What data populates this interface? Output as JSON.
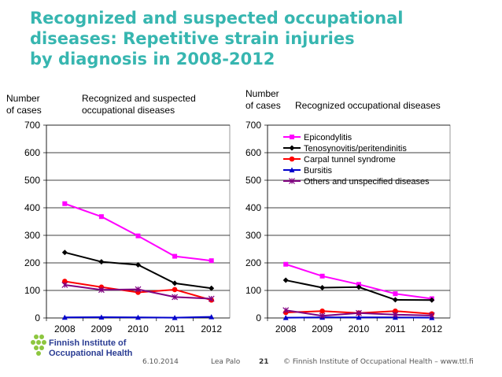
{
  "title_lines": [
    "Recognized and suspected occupational",
    "diseases: Repetitive strain injuries",
    "by diagnosis in 2008-2012"
  ],
  "left_ylabel": [
    "Number",
    "of cases"
  ],
  "left_subtitle": [
    "Recognized and suspected",
    "occupational diseases"
  ],
  "right_ylabel": [
    "Number",
    "of cases"
  ],
  "right_subtitle": "Recognized occupational diseases",
  "footer": {
    "date": "6.10.2014",
    "author": "Lea Palo",
    "page": "21",
    "copyright": "© Finnish Institute of Occupational Health  –  www.ttl.fi"
  },
  "logo": {
    "line1": "Finnish Institute of",
    "line2": "Occupational Health"
  },
  "colors": {
    "title": "#37b6b0",
    "Epicondylitis": "#ff00ff",
    "Tenosynovitis/peritendinitis": "#000000",
    "Carpal tunnel syndrome": "#ff0000",
    "Bursitis": "#0000cc",
    "Others and unspecified diseases": "#800080"
  },
  "chart_data": [
    {
      "type": "line",
      "title": "Recognized and suspected occupational diseases",
      "ylabel": "Number of cases",
      "x": [
        "2008",
        "2009",
        "2010",
        "2011",
        "2012"
      ],
      "ylim": [
        0,
        700
      ],
      "yticks": [
        0,
        100,
        200,
        300,
        400,
        500,
        600,
        700
      ],
      "grid": true,
      "legend": "none",
      "series": [
        {
          "name": "Epicondylitis",
          "values": [
            415,
            368,
            298,
            224,
            208
          ]
        },
        {
          "name": "Tenosynovitis/peritendinitis",
          "values": [
            238,
            204,
            193,
            126,
            108
          ]
        },
        {
          "name": "Carpal tunnel syndrome",
          "values": [
            133,
            112,
            93,
            103,
            65
          ]
        },
        {
          "name": "Bursitis",
          "values": [
            2,
            3,
            2,
            1,
            4
          ]
        },
        {
          "name": "Others and unspecified diseases",
          "values": [
            120,
            102,
            104,
            76,
            70
          ]
        }
      ]
    },
    {
      "type": "line",
      "title": "Recognized occupational diseases",
      "ylabel": "Number of cases",
      "x": [
        "2008",
        "2009",
        "2010",
        "2011",
        "2012"
      ],
      "ylim": [
        0,
        700
      ],
      "yticks": [
        0,
        100,
        200,
        300,
        400,
        500,
        600,
        700
      ],
      "grid": true,
      "legend": "top-right",
      "series": [
        {
          "name": "Epicondylitis",
          "values": [
            195,
            152,
            122,
            88,
            70
          ]
        },
        {
          "name": "Tenosynovitis/peritendinitis",
          "values": [
            137,
            110,
            112,
            66,
            65
          ]
        },
        {
          "name": "Carpal tunnel syndrome",
          "values": [
            20,
            25,
            18,
            25,
            15
          ]
        },
        {
          "name": "Bursitis",
          "values": [
            1,
            2,
            2,
            2,
            1
          ]
        },
        {
          "name": "Others and unspecified diseases",
          "values": [
            28,
            8,
            18,
            12,
            9
          ]
        }
      ]
    }
  ]
}
